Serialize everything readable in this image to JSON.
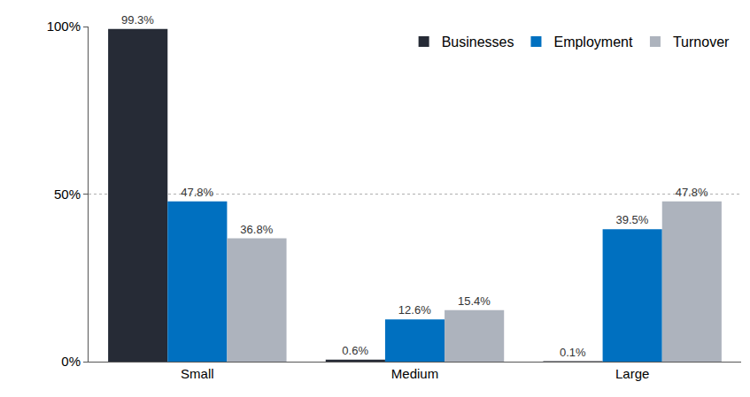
{
  "chart_data": {
    "type": "bar",
    "categories": [
      "Small",
      "Medium",
      "Large"
    ],
    "series": [
      {
        "name": "Businesses",
        "color": "#262b36",
        "values": [
          99.3,
          0.6,
          0.1
        ],
        "value_labels": [
          "99.3%",
          "0.6%",
          "0.1%"
        ]
      },
      {
        "name": "Employment",
        "color": "#0070c0",
        "values": [
          47.8,
          12.6,
          39.5
        ],
        "value_labels": [
          "47.8%",
          "12.6%",
          "39.5%"
        ]
      },
      {
        "name": "Turnover",
        "color": "#adb3bd",
        "values": [
          36.8,
          15.4,
          47.8
        ],
        "value_labels": [
          "36.8%",
          "15.4%",
          "47.8%"
        ]
      }
    ],
    "ylim": [
      0,
      100
    ],
    "yticks": [
      {
        "value": 0,
        "label": "0%"
      },
      {
        "value": 50,
        "label": "50%"
      },
      {
        "value": 100,
        "label": "100%"
      }
    ],
    "grid": true,
    "legend": "top right",
    "data_labels": true
  }
}
